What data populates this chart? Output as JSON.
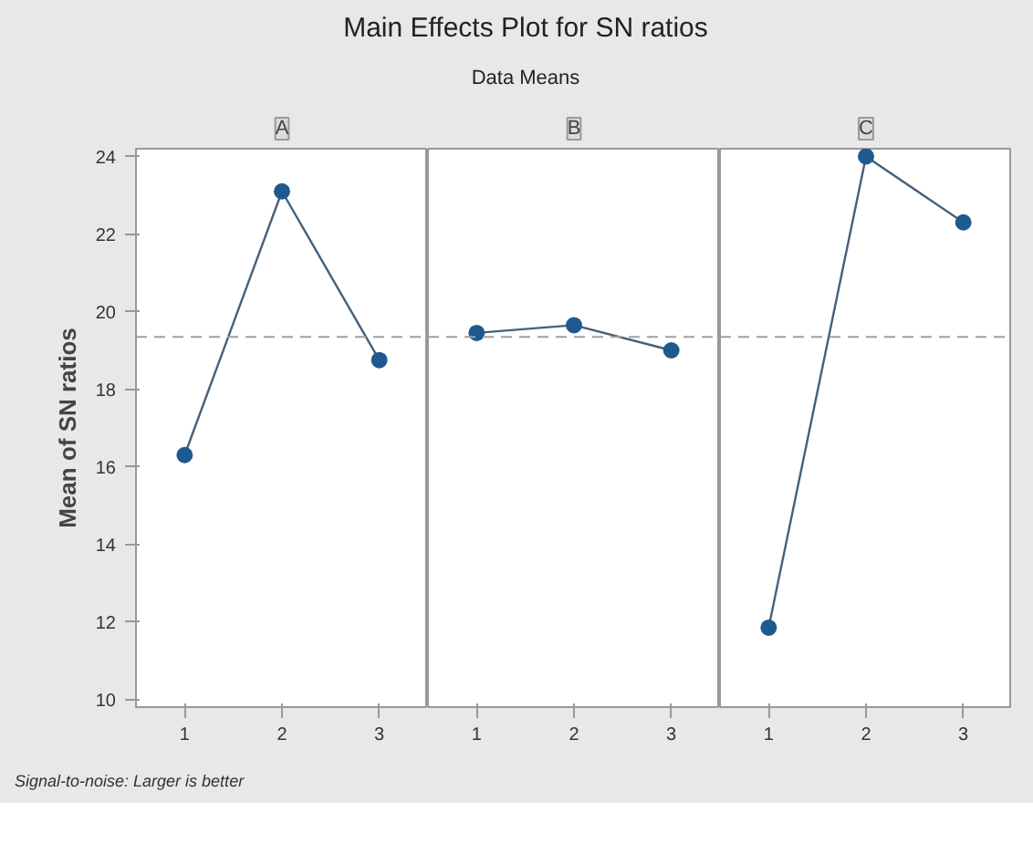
{
  "chart_data": [
    {
      "type": "line",
      "title": "A",
      "ylabel": "Mean of SN ratios",
      "annotations": [
        "Main Effects Plot for SN ratios",
        "Data Means",
        "Signal-to-noise: Larger is better"
      ],
      "x": [
        1,
        2,
        3
      ],
      "series": [
        {
          "color": "#1f5a8f",
          "values": [
            16.3,
            23.1,
            18.75
          ]
        }
      ],
      "xlim": [
        0.5,
        3.5
      ],
      "xticks": [
        1,
        2,
        3
      ],
      "ylim": [
        9.8,
        24.2
      ],
      "yticks": [
        10,
        12,
        14,
        16,
        18,
        20,
        22,
        24
      ],
      "marker": "circle",
      "line_style": "solid",
      "ref_lines": [
        {
          "axis": "y",
          "value": 19.35,
          "color": "#a0a0a0",
          "line_style": "dashed"
        }
      ]
    },
    {
      "type": "line",
      "title": "B",
      "x": [
        1,
        2,
        3
      ],
      "series": [
        {
          "color": "#1f5a8f",
          "values": [
            19.45,
            19.65,
            19.0
          ]
        }
      ],
      "xlim": [
        0.5,
        3.5
      ],
      "xticks": [
        1,
        2,
        3
      ],
      "ylim": [
        9.8,
        24.2
      ],
      "tick_labels": "x",
      "marker": "circle",
      "line_style": "solid",
      "ref_lines": [
        {
          "axis": "y",
          "value": 19.35,
          "color": "#a0a0a0",
          "line_style": "dashed"
        }
      ]
    },
    {
      "type": "line",
      "title": "C",
      "x": [
        1,
        2,
        3
      ],
      "series": [
        {
          "color": "#1f5a8f",
          "values": [
            11.85,
            24.0,
            22.3
          ]
        }
      ],
      "xlim": [
        0.5,
        3.5
      ],
      "xticks": [
        1,
        2,
        3
      ],
      "ylim": [
        9.8,
        24.2
      ],
      "tick_labels": "x",
      "marker": "circle",
      "line_style": "solid",
      "ref_lines": [
        {
          "axis": "y",
          "value": 19.35,
          "color": "#a0a0a0",
          "line_style": "dashed"
        }
      ]
    }
  ]
}
